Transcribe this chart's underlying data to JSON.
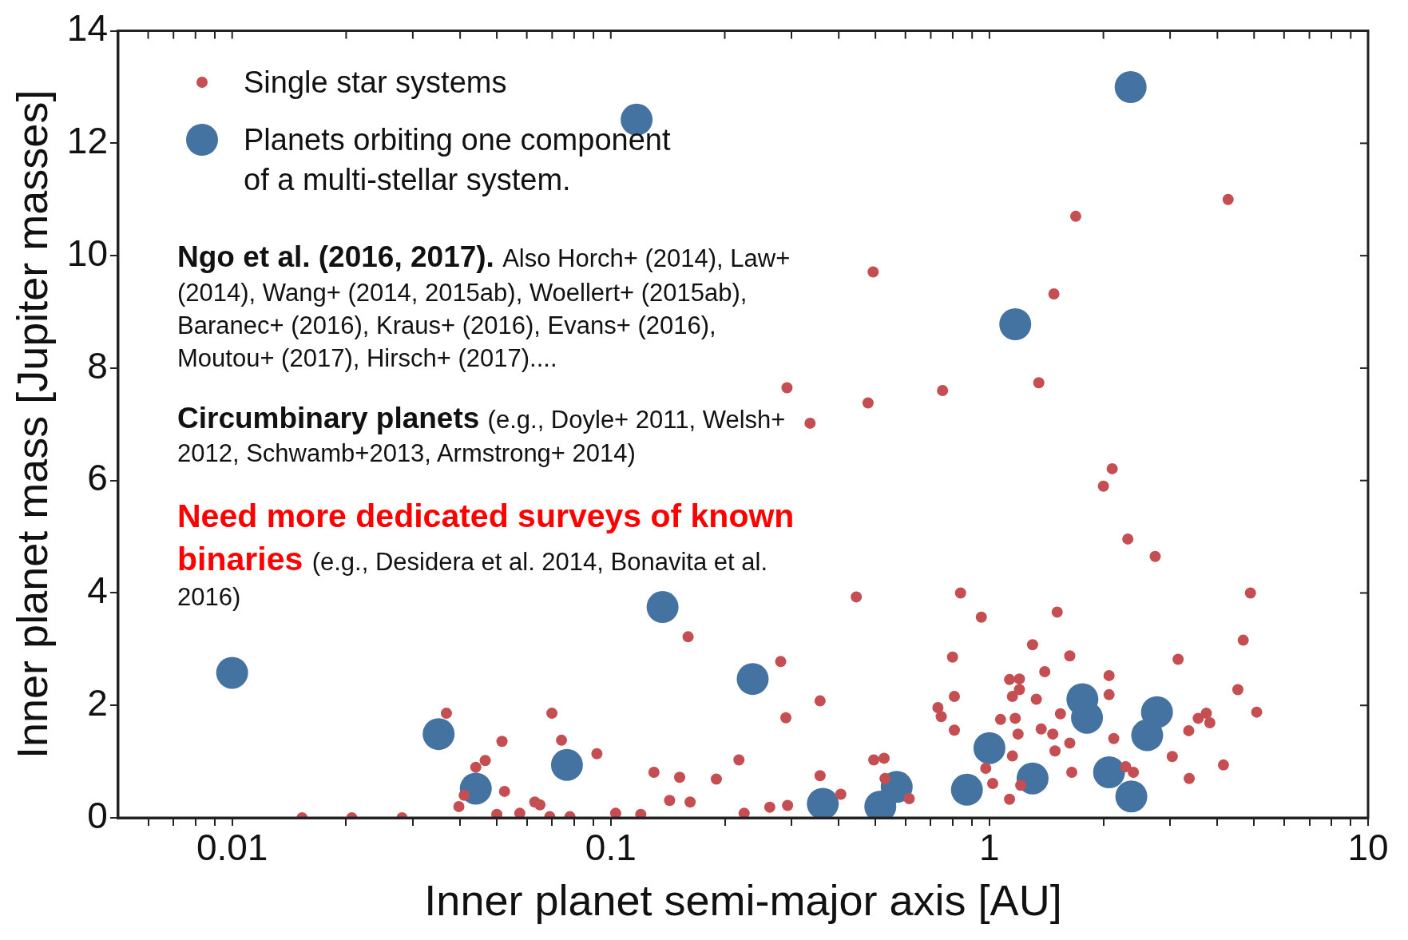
{
  "chart_data": {
    "type": "scatter",
    "xlabel": "Inner planet semi-major axis [AU]",
    "ylabel": "Inner planet mass [Jupiter masses]",
    "log": "x",
    "grid": false,
    "legend": "top left",
    "marker": "circle",
    "xlim": [
      0.005,
      10
    ],
    "xticks": [
      {
        "value": 0.006,
        "label": null
      },
      {
        "value": 0.007,
        "label": null
      },
      {
        "value": 0.008,
        "label": null
      },
      {
        "value": 0.009,
        "label": null
      },
      0.01,
      {
        "value": 0.02,
        "label": null
      },
      {
        "value": 0.03,
        "label": null
      },
      {
        "value": 0.04,
        "label": null
      },
      {
        "value": 0.05,
        "label": null
      },
      {
        "value": 0.06,
        "label": null
      },
      {
        "value": 0.07,
        "label": null
      },
      {
        "value": 0.08,
        "label": null
      },
      {
        "value": 0.09,
        "label": null
      },
      0.1,
      {
        "value": 0.2,
        "label": null
      },
      {
        "value": 0.3,
        "label": null
      },
      {
        "value": 0.4,
        "label": null
      },
      {
        "value": 0.5,
        "label": null
      },
      {
        "value": 0.6,
        "label": null
      },
      {
        "value": 0.7,
        "label": null
      },
      {
        "value": 0.8,
        "label": null
      },
      {
        "value": 0.9,
        "label": null
      },
      1,
      {
        "value": 2,
        "label": null
      },
      {
        "value": 3,
        "label": null
      },
      {
        "value": 4,
        "label": null
      },
      {
        "value": 5,
        "label": null
      },
      {
        "value": 6,
        "label": null
      },
      {
        "value": 7,
        "label": null
      },
      {
        "value": 8,
        "label": null
      },
      {
        "value": 9,
        "label": null
      },
      10
    ],
    "ylim": [
      0,
      14
    ],
    "yticks": [
      0,
      2,
      4,
      6,
      8,
      10,
      12,
      14
    ],
    "series": [
      {
        "name": "Single star systems",
        "color": "#c44e52",
        "x": [
          0.0153,
          0.0207,
          0.0281,
          0.0368,
          0.0397,
          0.041,
          0.044,
          0.0466,
          0.0516,
          0.0524,
          0.05,
          0.0575,
          0.063,
          0.065,
          0.0699,
          0.0741,
          0.069,
          0.078,
          0.0919,
          0.103,
          0.12,
          0.13,
          0.143,
          0.152,
          0.16,
          0.162,
          0.19,
          0.218,
          0.225,
          0.263,
          0.281,
          0.29,
          0.292,
          0.293,
          0.336,
          0.357,
          0.357,
          0.405,
          0.445,
          0.478,
          0.493,
          0.495,
          0.527,
          0.53,
          0.614,
          0.731,
          0.746,
          0.752,
          0.799,
          0.808,
          0.808,
          0.839,
          0.952,
          0.978,
          1.02,
          1.07,
          1.13,
          1.15,
          1.17,
          1.15,
          1.19,
          1.2,
          1.2,
          1.21,
          1.13,
          1.3,
          1.33,
          1.35,
          1.37,
          1.4,
          1.47,
          1.48,
          1.49,
          1.51,
          1.54,
          1.63,
          1.65,
          1.63,
          1.69,
          2.0,
          2.07,
          2.07,
          2.11,
          2.13,
          2.29,
          2.32,
          2.4,
          2.74,
          3.04,
          3.15,
          3.37,
          3.36,
          3.56,
          3.74,
          3.82,
          4.15,
          4.27,
          4.53,
          4.68,
          4.89,
          5.08
        ],
        "values": [
          0,
          0,
          0,
          1.86,
          0.2,
          0.4,
          0.9,
          1.02,
          1.36,
          0.47,
          0.06,
          0.08,
          0.28,
          0.23,
          1.86,
          1.38,
          0.02,
          0.02,
          1.14,
          0.08,
          0.06,
          0.81,
          0.31,
          0.72,
          3.22,
          0.28,
          0.69,
          1.03,
          0.08,
          0.19,
          2.78,
          1.78,
          7.65,
          0.22,
          7.02,
          0.75,
          2.08,
          0.42,
          3.93,
          7.38,
          9.71,
          1.03,
          1.06,
          0.7,
          0.34,
          1.96,
          1.8,
          7.6,
          2.86,
          2.16,
          1.56,
          4.0,
          3.57,
          0.88,
          0.61,
          1.75,
          2.46,
          2.16,
          1.77,
          1.1,
          1.49,
          2.47,
          2.28,
          0.58,
          0.33,
          3.08,
          2.11,
          7.74,
          1.58,
          2.6,
          1.49,
          9.32,
          1.19,
          3.66,
          1.85,
          2.88,
          0.81,
          1.33,
          10.7,
          5.9,
          2.53,
          2.19,
          6.21,
          1.41,
          0.91,
          4.96,
          0.81,
          4.65,
          1.09,
          2.82,
          0.7,
          1.55,
          1.77,
          1.86,
          1.69,
          0.94,
          11.0,
          2.28,
          3.16,
          4.0,
          1.88
        ]
      },
      {
        "name": "Planets orbiting one component\nof a multi-stellar system.",
        "color": "#4473a2",
        "x": [
          0.01,
          0.0351,
          0.044,
          0.0766,
          0.117,
          0.137,
          0.237,
          0.363,
          0.515,
          0.569,
          0.872,
          1.0,
          1.17,
          1.24,
          1.3,
          1.76,
          1.81,
          2.07,
          2.36,
          2.37,
          2.61,
          2.77
        ],
        "values": [
          2.58,
          1.49,
          0.52,
          0.94,
          12.42,
          3.75,
          2.47,
          0.25,
          0.2,
          0.55,
          0.5,
          1.24,
          8.78,
          null,
          0.7,
          2.11,
          1.78,
          0.81,
          13.0,
          0.38,
          1.47,
          1.88
        ]
      }
    ],
    "annotations": [
      "Ngo et al. (2016, 2017).",
      "Also Horch+ (2014), Law+ (2014), Wang+ (2014, 2015ab), Woellert+ (2015ab), Baranec+ (2016), Kraus+ (2016), Evans+ (2016), Moutou+ (2017), Hirsch+ (2017)....",
      "Circumbinary planets",
      "(e.g., Doyle+ 2011, Welsh+ 2012, Schwamb+2013, Armstrong+ 2014)",
      "Need more dedicated surveys of known binaries",
      "(e.g., Desidera et al. 2014, Bonavita et al. 2016)"
    ]
  }
}
